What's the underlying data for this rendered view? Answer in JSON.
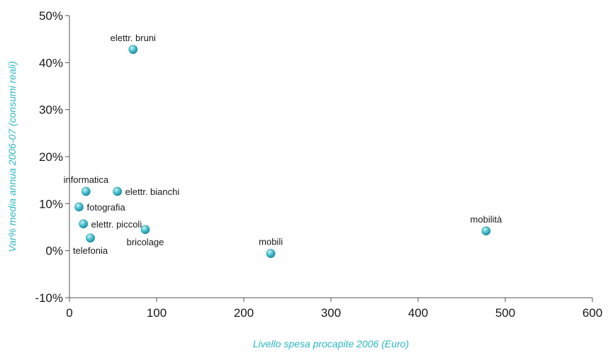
{
  "colors": {
    "axis_title": "#2ab7c4",
    "axis_line": "#555555",
    "point_light": "#c8f2f6",
    "point_mid": "#4cc3d2",
    "point_dark": "#1a8a9a"
  },
  "chart_data": {
    "type": "scatter",
    "title": "",
    "xlabel": "Livello spesa procapite 2006 (Euro)",
    "ylabel": "Var% media annua 2006-07 (consumi reali)",
    "xlim": [
      0,
      600
    ],
    "ylim": [
      -10,
      50
    ],
    "grid": false,
    "x_ticks": [
      {
        "value": 0,
        "label": "0"
      },
      {
        "value": 100,
        "label": "100"
      },
      {
        "value": 200,
        "label": "200"
      },
      {
        "value": 300,
        "label": "300"
      },
      {
        "value": 400,
        "label": "400"
      },
      {
        "value": 500,
        "label": "500"
      },
      {
        "value": 600,
        "label": "600"
      }
    ],
    "y_ticks": [
      {
        "value": -10,
        "label": "-10%"
      },
      {
        "value": 0,
        "label": "0%"
      },
      {
        "value": 10,
        "label": "10%"
      },
      {
        "value": 20,
        "label": "20%"
      },
      {
        "value": 30,
        "label": "30%"
      },
      {
        "value": 40,
        "label": "40%"
      },
      {
        "value": 50,
        "label": "50%"
      }
    ],
    "points": [
      {
        "label": "elettr. bruni",
        "x": 73,
        "y": 42.8,
        "label_pos": "above"
      },
      {
        "label": "informatica",
        "x": 19,
        "y": 12.6,
        "label_pos": "above"
      },
      {
        "label": "elettr. bianchi",
        "x": 55,
        "y": 12.6,
        "label_pos": "right"
      },
      {
        "label": "fotografia",
        "x": 11,
        "y": 9.3,
        "label_pos": "right"
      },
      {
        "label": "elettr. piccoli",
        "x": 16,
        "y": 5.7,
        "label_pos": "right"
      },
      {
        "label": "bricolage",
        "x": 87,
        "y": 4.5,
        "label_pos": "below"
      },
      {
        "label": "telefonia",
        "x": 24,
        "y": 2.7,
        "label_pos": "below"
      },
      {
        "label": "mobili",
        "x": 231,
        "y": -0.6,
        "label_pos": "above"
      },
      {
        "label": "mobilità",
        "x": 478,
        "y": 4.2,
        "label_pos": "above"
      }
    ]
  }
}
